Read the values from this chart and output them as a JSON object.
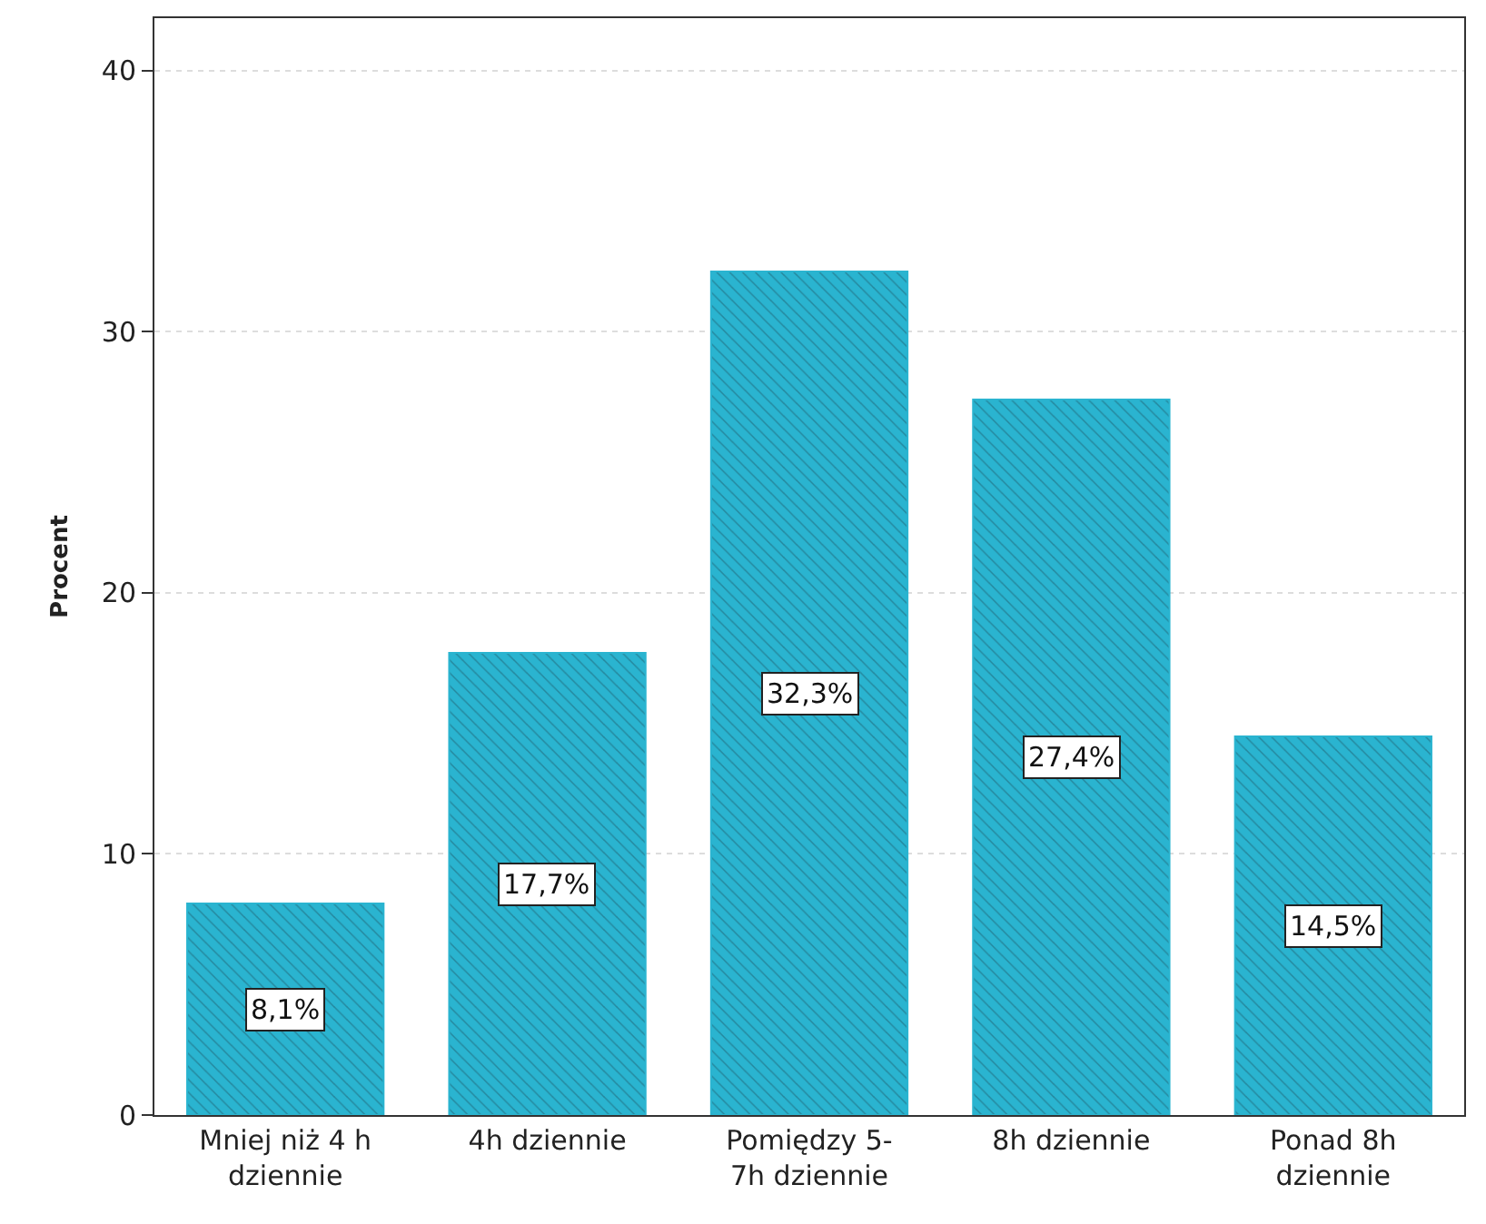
{
  "chart_data": {
    "type": "bar",
    "ylabel": "Procent",
    "categories": [
      "Mniej niż 4 h\ndziennie",
      "4h dziennie",
      "Pomiędzy 5-\n7h dziennie",
      "8h dziennie",
      "Ponad 8h\ndziennie"
    ],
    "values": [
      8.1,
      17.7,
      32.3,
      27.4,
      14.5
    ],
    "value_labels": [
      "8,1%",
      "17,7%",
      "32,3%",
      "27,4%",
      "14,5%"
    ],
    "color": "#2ab4d0",
    "ylim": [
      0,
      42
    ],
    "yticks": [
      0,
      10,
      20,
      30,
      40
    ],
    "grid": "y"
  }
}
